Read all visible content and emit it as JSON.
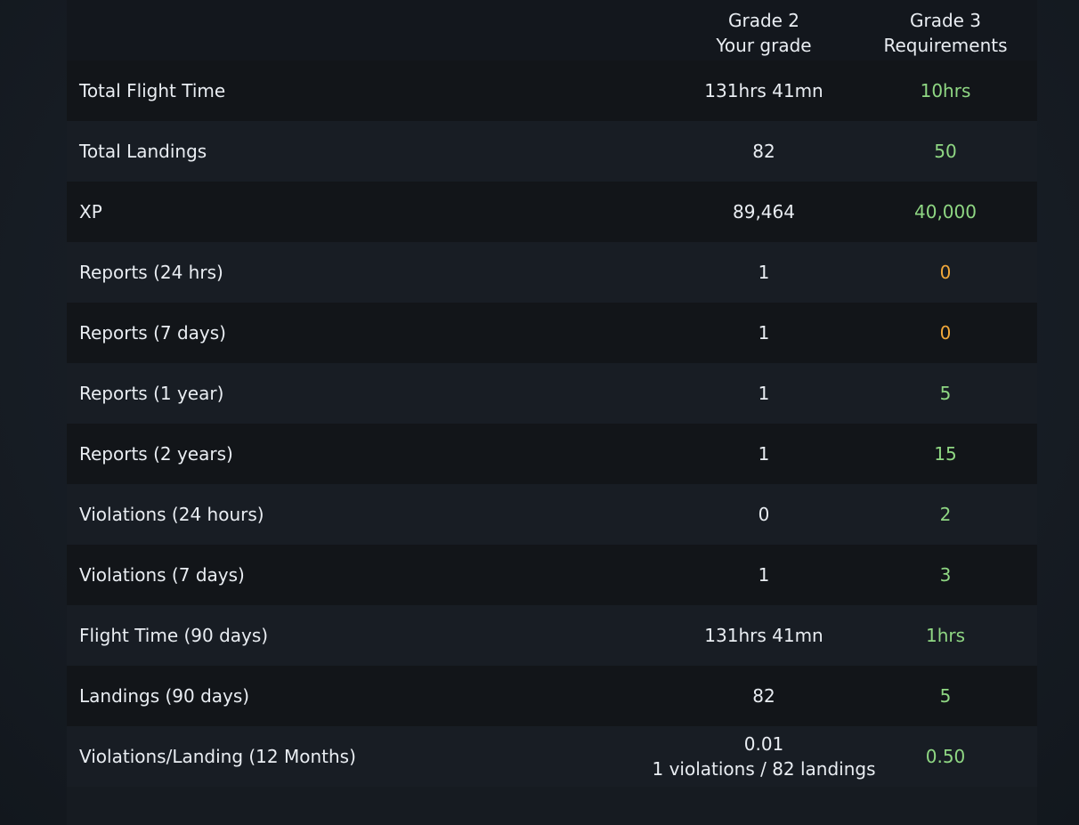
{
  "header": {
    "current_grade": "Grade 2",
    "current_grade_sub": "Your grade",
    "next_grade": "Grade 3",
    "next_grade_sub": "Requirements"
  },
  "colors": {
    "met": "#8fd783",
    "not_met": "#f1a83a"
  },
  "rows": [
    {
      "label": "Total Flight Time",
      "value": "131hrs 41mn",
      "value_sub": "",
      "requirement": "10hrs",
      "status": "ok"
    },
    {
      "label": "Total Landings",
      "value": "82",
      "value_sub": "",
      "requirement": "50",
      "status": "ok"
    },
    {
      "label": "XP",
      "value": "89,464",
      "value_sub": "",
      "requirement": "40,000",
      "status": "ok"
    },
    {
      "label": "Reports (24 hrs)",
      "value": "1",
      "value_sub": "",
      "requirement": "0",
      "status": "warn"
    },
    {
      "label": "Reports (7 days)",
      "value": "1",
      "value_sub": "",
      "requirement": "0",
      "status": "warn"
    },
    {
      "label": "Reports (1 year)",
      "value": "1",
      "value_sub": "",
      "requirement": "5",
      "status": "ok"
    },
    {
      "label": "Reports (2 years)",
      "value": "1",
      "value_sub": "",
      "requirement": "15",
      "status": "ok"
    },
    {
      "label": "Violations (24 hours)",
      "value": "0",
      "value_sub": "",
      "requirement": "2",
      "status": "ok"
    },
    {
      "label": "Violations (7 days)",
      "value": "1",
      "value_sub": "",
      "requirement": "3",
      "status": "ok"
    },
    {
      "label": "Flight Time (90 days)",
      "value": "131hrs 41mn",
      "value_sub": "",
      "requirement": "1hrs",
      "status": "ok"
    },
    {
      "label": "Landings (90 days)",
      "value": "82",
      "value_sub": "",
      "requirement": "5",
      "status": "ok"
    },
    {
      "label": "Violations/Landing (12 Months)",
      "value": "0.01",
      "value_sub": "1 violations / 82 landings",
      "requirement": "0.50",
      "status": "ok"
    }
  ]
}
